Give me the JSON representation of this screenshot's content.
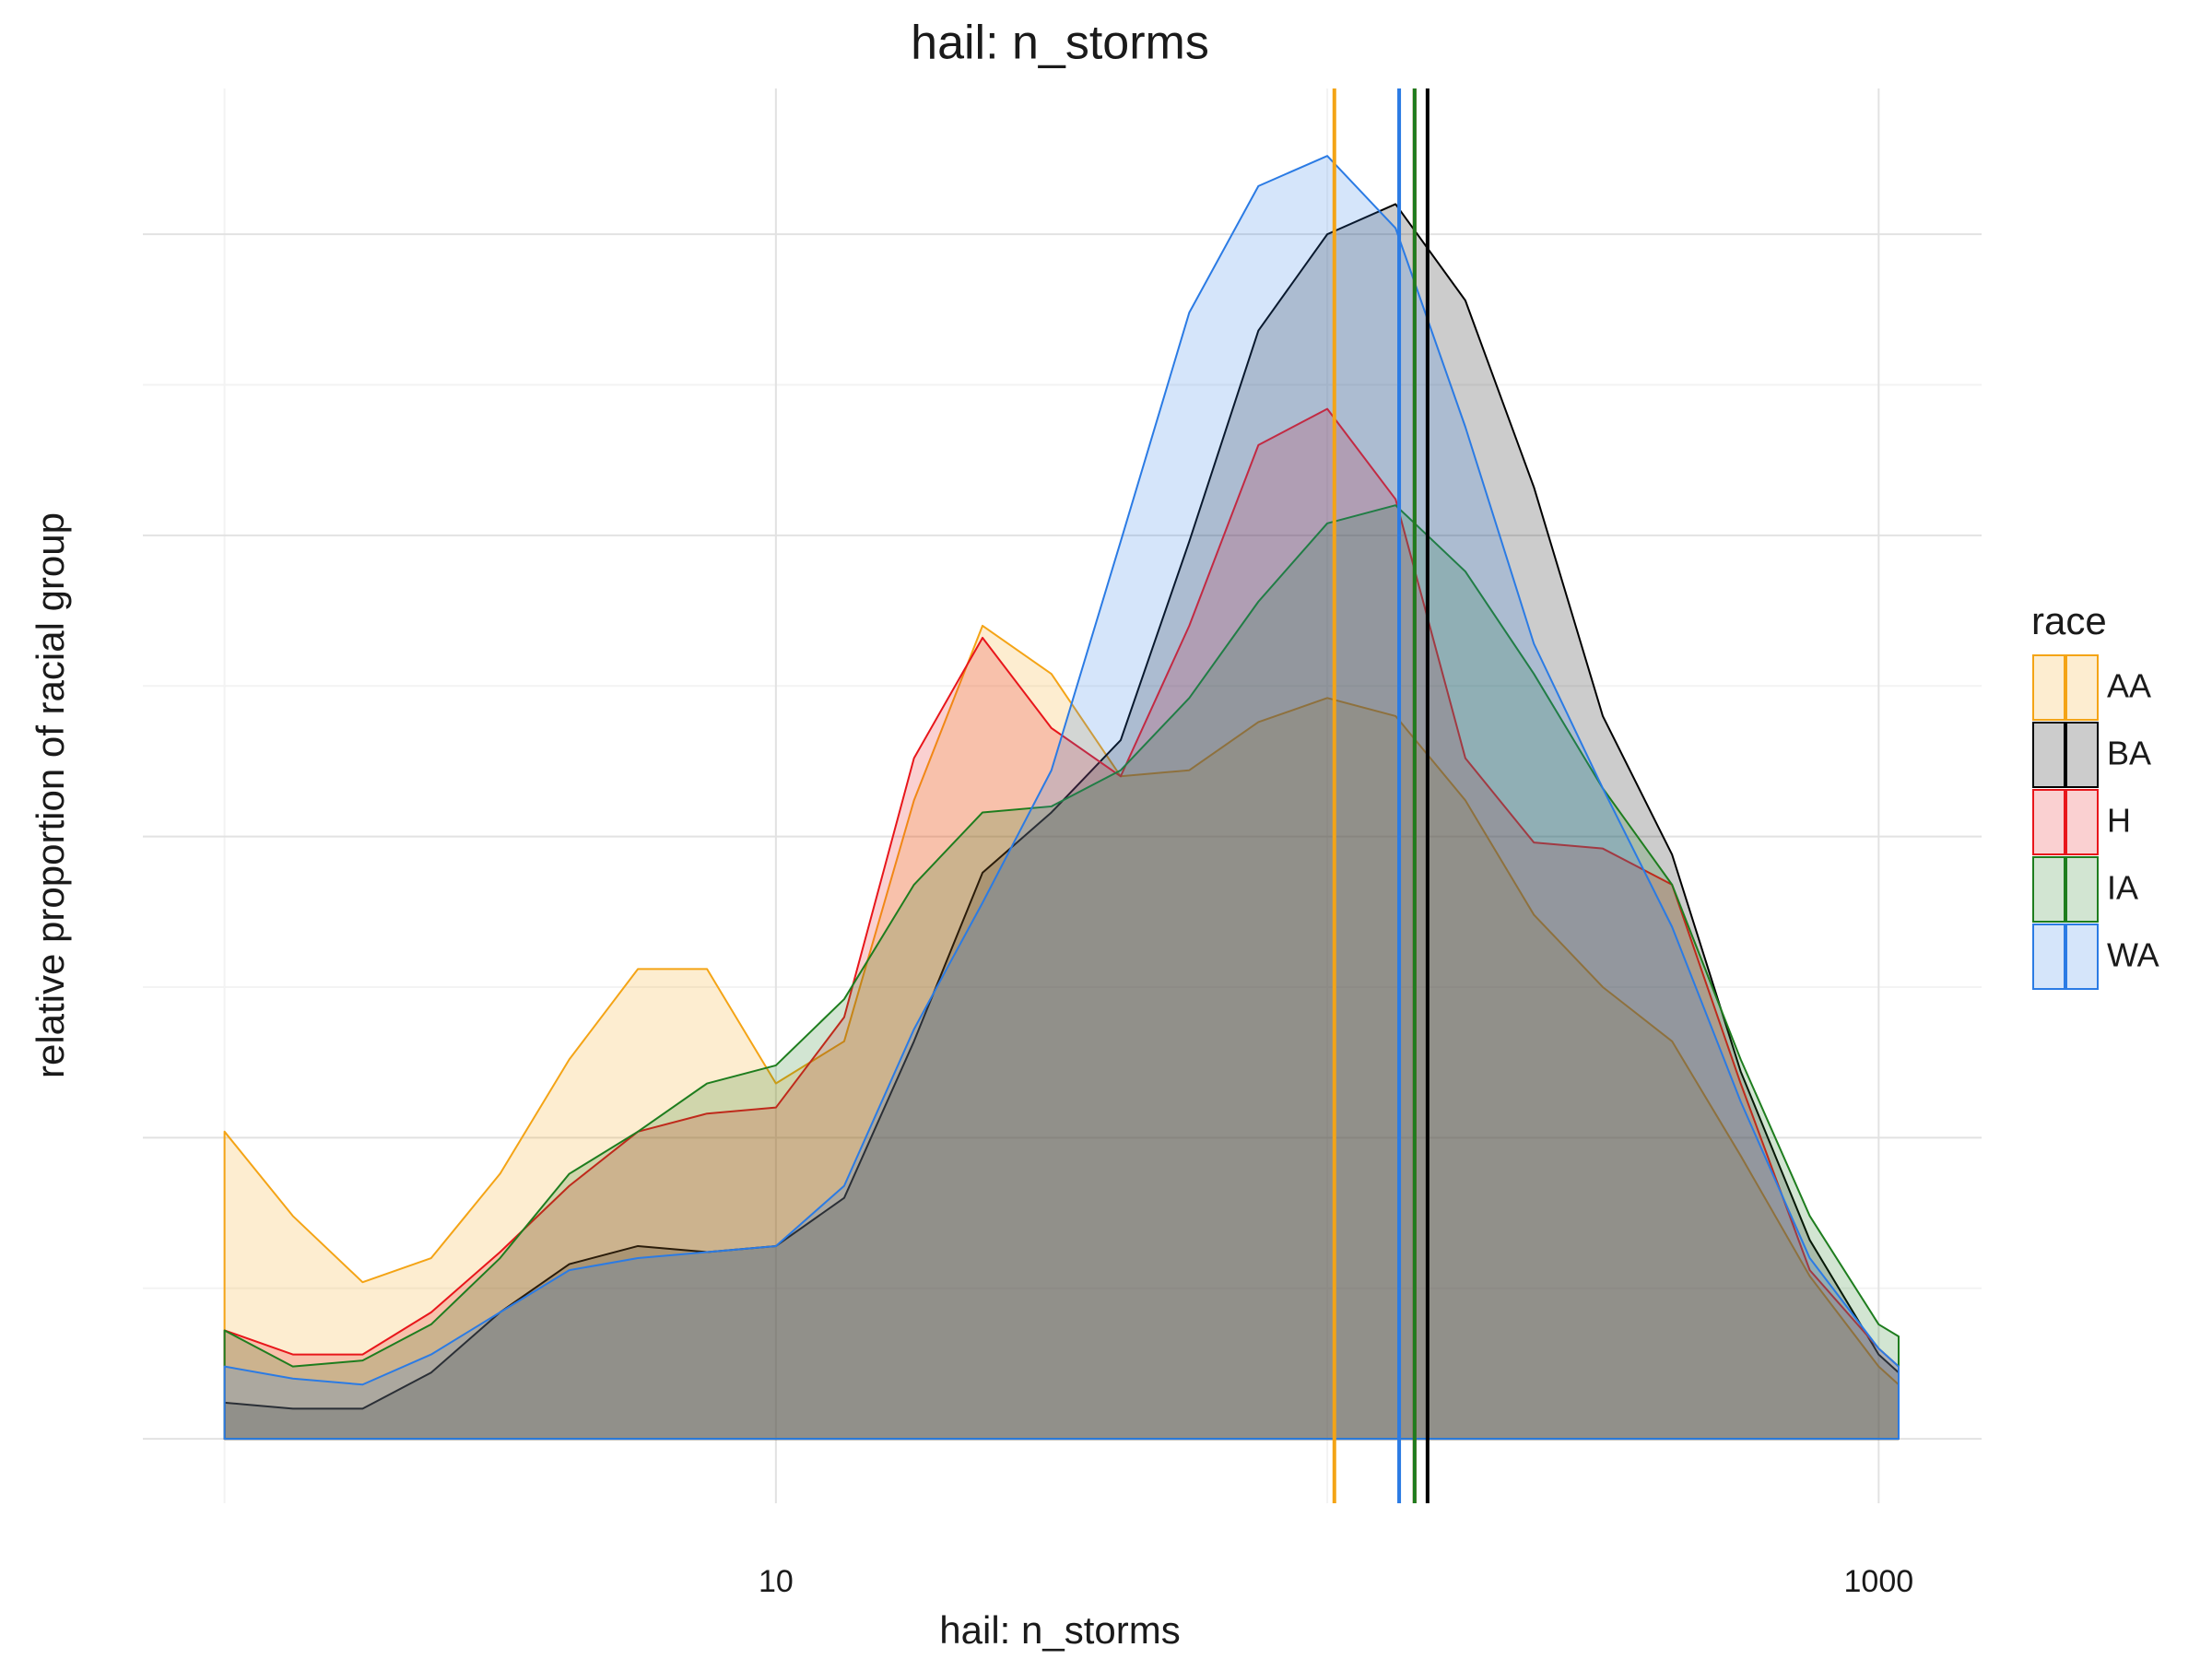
{
  "chart_data": {
    "type": "density",
    "title": "hail: n_storms",
    "x_label": "hail: n_storms",
    "y_label": "relative proportion of racial group",
    "legend_title": "race",
    "x_log": true,
    "xlim": [
      0.711,
      1537
    ],
    "ylim": [
      -0.107,
      2.242
    ],
    "xticks": [
      10,
      1000
    ],
    "x_minor_grid": [
      1,
      100
    ],
    "y_grid": [
      0,
      0.5,
      1,
      1.5,
      2
    ],
    "y_minor_grid": [
      0.25,
      0.75,
      1.25,
      1.75
    ],
    "x": [
      1,
      1.33,
      1.78,
      2.37,
      3.16,
      4.22,
      5.62,
      7.5,
      10,
      13.3,
      17.8,
      23.7,
      31.6,
      42.2,
      56.2,
      75,
      100,
      133,
      178,
      237,
      316,
      422,
      562,
      750,
      1000,
      1087
    ],
    "series": [
      {
        "name": "AA",
        "color": "#f4a416",
        "mean": 103,
        "values": [
          0.51,
          0.37,
          0.26,
          0.3,
          0.44,
          0.63,
          0.78,
          0.78,
          0.59,
          0.66,
          1.06,
          1.35,
          1.27,
          1.1,
          1.11,
          1.19,
          1.23,
          1.2,
          1.06,
          0.87,
          0.75,
          0.66,
          0.47,
          0.27,
          0.12,
          0.09
        ]
      },
      {
        "name": "BA",
        "color": "#000000",
        "mean": 152,
        "values": [
          0.06,
          0.05,
          0.05,
          0.11,
          0.21,
          0.29,
          0.32,
          0.31,
          0.32,
          0.4,
          0.66,
          0.94,
          1.04,
          1.16,
          1.49,
          1.84,
          2.0,
          2.05,
          1.89,
          1.58,
          1.2,
          0.97,
          0.61,
          0.33,
          0.14,
          0.11
        ]
      },
      {
        "name": "H",
        "color": "#e8161b",
        "mean": 144,
        "values": [
          0.18,
          0.14,
          0.14,
          0.21,
          0.31,
          0.42,
          0.51,
          0.54,
          0.55,
          0.7,
          1.13,
          1.33,
          1.18,
          1.1,
          1.35,
          1.65,
          1.71,
          1.56,
          1.13,
          0.99,
          0.98,
          0.92,
          0.59,
          0.28,
          0.15,
          0.12
        ]
      },
      {
        "name": "IA",
        "color": "#1e7d1e",
        "mean": 144,
        "values": [
          0.18,
          0.12,
          0.13,
          0.19,
          0.3,
          0.44,
          0.51,
          0.59,
          0.62,
          0.73,
          0.92,
          1.04,
          1.05,
          1.11,
          1.23,
          1.39,
          1.52,
          1.55,
          1.44,
          1.27,
          1.08,
          0.92,
          0.63,
          0.37,
          0.19,
          0.17
        ]
      },
      {
        "name": "WA",
        "color": "#2b7be4",
        "mean": 135,
        "values": [
          0.12,
          0.1,
          0.09,
          0.14,
          0.21,
          0.28,
          0.3,
          0.31,
          0.32,
          0.42,
          0.68,
          0.89,
          1.11,
          1.49,
          1.87,
          2.08,
          2.13,
          2.01,
          1.68,
          1.32,
          1.08,
          0.85,
          0.56,
          0.3,
          0.15,
          0.12
        ]
      }
    ]
  }
}
